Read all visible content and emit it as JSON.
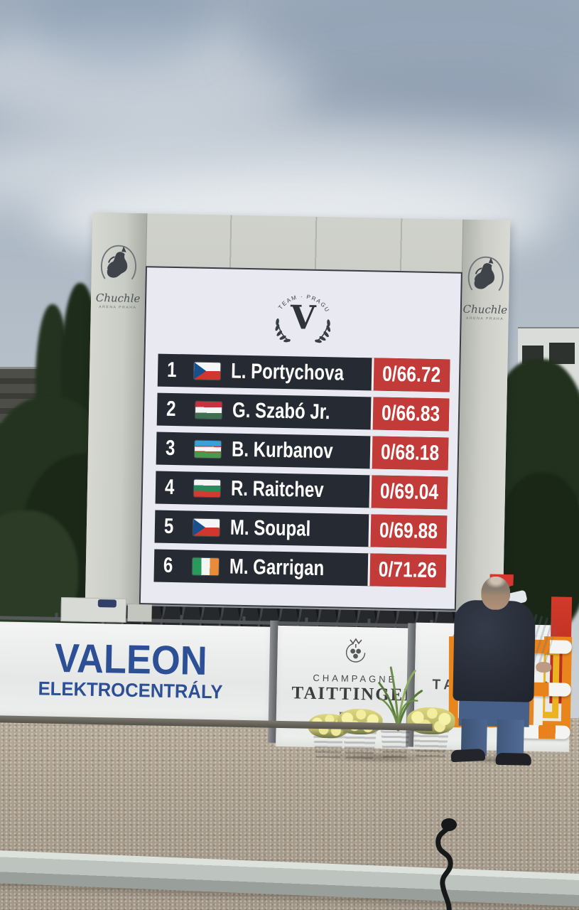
{
  "scoreboard": {
    "venue_logo": {
      "name": "Chuchle",
      "caption": "ARENA PRAHA"
    },
    "screen_logo": {
      "arc_text": "V TEAM · PRAGUE",
      "monogram": "V"
    },
    "rows": [
      {
        "rank": "1",
        "flag": "cze",
        "name": "L. Portychova",
        "result": "0/66.72"
      },
      {
        "rank": "2",
        "flag": "hun",
        "name": "G. Szabó Jr.",
        "result": "0/66.83"
      },
      {
        "rank": "3",
        "flag": "uzb",
        "name": "B. Kurbanov",
        "result": "0/68.18"
      },
      {
        "rank": "4",
        "flag": "bul",
        "name": "R. Raitchev",
        "result": "0/69.04"
      },
      {
        "rank": "5",
        "flag": "cze",
        "name": "M. Soupal",
        "result": "0/69.88"
      },
      {
        "rank": "6",
        "flag": "irl",
        "name": "M. Garrigan",
        "result": "0/71.26"
      }
    ],
    "colors": {
      "row_bg": "#262a32",
      "result_bg": "#c23b38",
      "screen_bg": "#e9eaf1",
      "row_text": "#ffffff"
    }
  },
  "banners": {
    "valeon": {
      "line1": "VALEON",
      "line2": "ELEKTROCENTRÁLY",
      "color": "#2d4f96"
    },
    "taittinger": {
      "label_top": "CHAMPAGNE",
      "brand": "TAITTINGER",
      "city_script": "Reims"
    },
    "taittinger_right": {
      "brand": "TAITTINGER"
    }
  },
  "equipment_colors": {
    "jump_orange": "#e8851c",
    "jump_yellow": "#ecb21f",
    "pennant_red": "#d6362e"
  }
}
